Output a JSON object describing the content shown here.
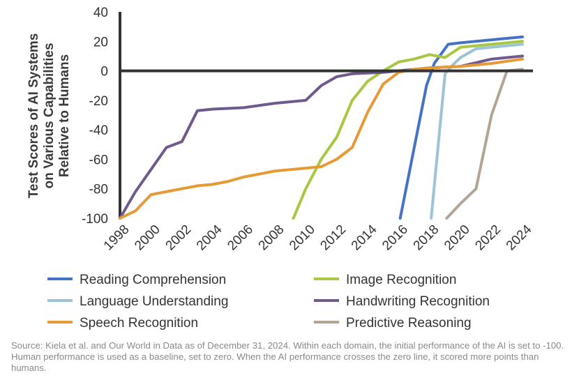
{
  "chart_data": {
    "type": "line",
    "title": "",
    "ylabel": "Test Scores of AI Systems on Various Capabilities Relative to Humans",
    "ylabel_lines": [
      "Test Scores of AI Systems",
      "on Various Capabilities",
      "Relative to Humans"
    ],
    "xlabel": "",
    "xlim": [
      1998,
      2024
    ],
    "ylim": [
      -100,
      40
    ],
    "x_ticks": [
      1998,
      2000,
      2002,
      2004,
      2006,
      2008,
      2010,
      2012,
      2014,
      2016,
      2018,
      2020,
      2022,
      2024
    ],
    "y_ticks": [
      -100,
      -80,
      -60,
      -40,
      -20,
      0,
      20,
      40
    ],
    "grid": false,
    "baseline": 0,
    "legend_position": "bottom",
    "series": [
      {
        "name": "Reading Comprehension",
        "color": "#4472C4",
        "points": [
          [
            2016.1,
            -100
          ],
          [
            2017.8,
            -10
          ],
          [
            2018.3,
            5
          ],
          [
            2019.2,
            18
          ],
          [
            2020,
            19
          ],
          [
            2024,
            23
          ]
        ]
      },
      {
        "name": "Image Recognition",
        "color": "#A8C843",
        "points": [
          [
            2009.2,
            -100
          ],
          [
            2010,
            -80
          ],
          [
            2011,
            -60
          ],
          [
            2012,
            -45
          ],
          [
            2013,
            -20
          ],
          [
            2014,
            -7
          ],
          [
            2015,
            0
          ],
          [
            2016,
            6
          ],
          [
            2017,
            8
          ],
          [
            2018,
            11
          ],
          [
            2019,
            9
          ],
          [
            2020,
            16
          ],
          [
            2021,
            17
          ],
          [
            2022,
            18
          ],
          [
            2024,
            20
          ]
        ]
      },
      {
        "name": "Language Understanding",
        "color": "#9DC3D6",
        "points": [
          [
            2018.1,
            -100
          ],
          [
            2019,
            -2
          ],
          [
            2019.5,
            4
          ],
          [
            2020,
            9
          ],
          [
            2021,
            15
          ],
          [
            2024,
            18
          ]
        ]
      },
      {
        "name": "Handwriting Recognition",
        "color": "#6E5A8C",
        "points": [
          [
            1998,
            -100
          ],
          [
            1999,
            -82
          ],
          [
            2000,
            -67
          ],
          [
            2001,
            -52
          ],
          [
            2002,
            -48
          ],
          [
            2003,
            -27
          ],
          [
            2004,
            -26
          ],
          [
            2006,
            -25
          ],
          [
            2008,
            -22
          ],
          [
            2010,
            -20
          ],
          [
            2011,
            -10
          ],
          [
            2012,
            -4
          ],
          [
            2013,
            -2
          ],
          [
            2015,
            -1
          ],
          [
            2016,
            0
          ],
          [
            2018,
            2
          ],
          [
            2020,
            3
          ],
          [
            2022,
            8
          ],
          [
            2024,
            10
          ]
        ]
      },
      {
        "name": "Speech Recognition",
        "color": "#E69A35",
        "points": [
          [
            1998,
            -100
          ],
          [
            1999,
            -95
          ],
          [
            2000,
            -84
          ],
          [
            2001,
            -82
          ],
          [
            2002,
            -80
          ],
          [
            2003,
            -78
          ],
          [
            2004,
            -77
          ],
          [
            2005,
            -75
          ],
          [
            2006,
            -72
          ],
          [
            2007,
            -70
          ],
          [
            2008,
            -68
          ],
          [
            2009,
            -67
          ],
          [
            2010,
            -66
          ],
          [
            2011,
            -65
          ],
          [
            2012,
            -60
          ],
          [
            2013,
            -52
          ],
          [
            2014,
            -28
          ],
          [
            2015,
            -9
          ],
          [
            2016,
            -1
          ],
          [
            2017,
            1
          ],
          [
            2018,
            2
          ],
          [
            2020,
            3
          ],
          [
            2022,
            5
          ],
          [
            2024,
            8
          ]
        ]
      },
      {
        "name": "Predictive Reasoning",
        "color": "#B3A595",
        "points": [
          [
            2019.1,
            -100
          ],
          [
            2020,
            -90
          ],
          [
            2021,
            -80
          ],
          [
            2022,
            -30
          ],
          [
            2023,
            0
          ],
          [
            2024,
            1
          ]
        ]
      }
    ]
  },
  "source_note": "Source: Kiela et al. and Our World in Data as of December 31, 2024. Within each domain, the initial performance of the AI is set to -100. Human performance is used as a baseline, set to zero. When the AI performance crosses the zero line, it scored more points than humans."
}
